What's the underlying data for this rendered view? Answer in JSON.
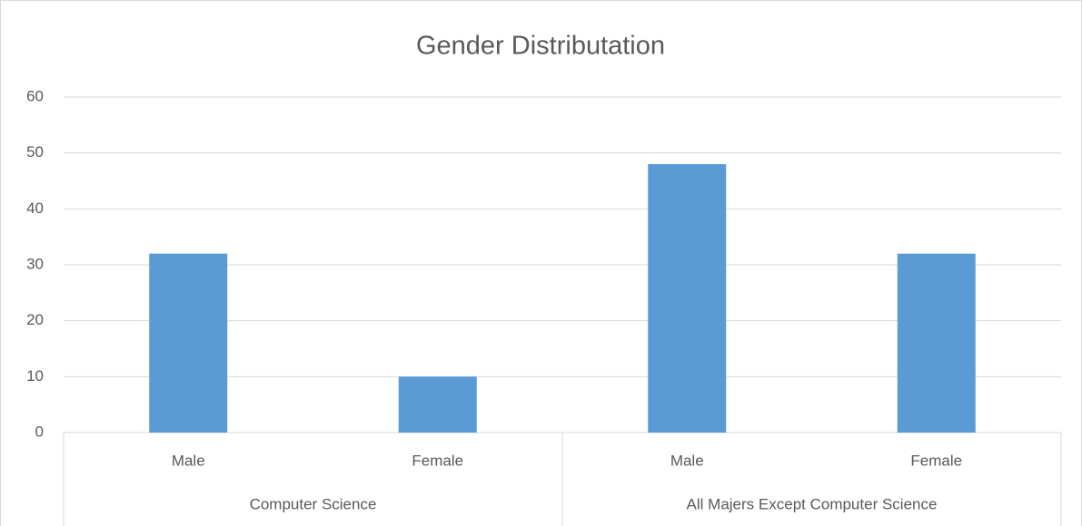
{
  "chart_data": {
    "type": "bar",
    "title": "Gender Distributation",
    "categories": [
      "Male",
      "Female",
      "Male",
      "Female"
    ],
    "groups": [
      "Computer Science",
      "All Majers Except Computer Science"
    ],
    "values": [
      32,
      10,
      48,
      32
    ],
    "color": "#5b9bd5",
    "ylim": [
      0,
      60
    ],
    "yticks": [
      0,
      10,
      20,
      30,
      40,
      50,
      60
    ],
    "grid": true
  }
}
